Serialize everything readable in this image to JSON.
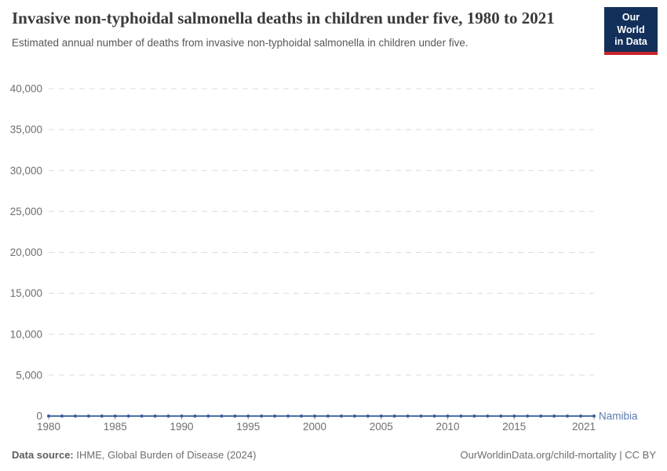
{
  "header": {
    "title": "Invasive non-typhoidal salmonella deaths in children under five, 1980 to 2021",
    "subtitle": "Estimated annual number of deaths from invasive non-typhoidal salmonella in children under five."
  },
  "logo": {
    "line1": "Our World",
    "line2": "in Data",
    "bg_color": "#12305a",
    "accent_color": "#c9262c"
  },
  "chart_data": {
    "type": "line",
    "title": "Invasive non-typhoidal salmonella deaths in children under five, 1980 to 2021",
    "xlabel": "",
    "ylabel": "",
    "xlim": [
      1980,
      2021
    ],
    "ylim": [
      0,
      40000
    ],
    "grid": "horizontal-dashed",
    "legend_position": "end-of-line-label",
    "x": [
      1980,
      1981,
      1982,
      1983,
      1984,
      1985,
      1986,
      1987,
      1988,
      1989,
      1990,
      1991,
      1992,
      1993,
      1994,
      1995,
      1996,
      1997,
      1998,
      1999,
      2000,
      2001,
      2002,
      2003,
      2004,
      2005,
      2006,
      2007,
      2008,
      2009,
      2010,
      2011,
      2012,
      2013,
      2014,
      2015,
      2016,
      2017,
      2018,
      2019,
      2020,
      2021
    ],
    "series": [
      {
        "name": "Namibia",
        "color": "#4e6fa8",
        "marker_color": "#3c5f99",
        "label_color": "#5b7cb0",
        "values": [
          0,
          0,
          0,
          0,
          0,
          0,
          0,
          0,
          0,
          0,
          0,
          0,
          0,
          0,
          0,
          0,
          0,
          0,
          0,
          0,
          0,
          0,
          0,
          0,
          0,
          0,
          0,
          0,
          0,
          0,
          0,
          0,
          0,
          0,
          0,
          0,
          0,
          0,
          0,
          0,
          0,
          0
        ]
      }
    ],
    "yticks": [
      {
        "value": 0,
        "label": "0"
      },
      {
        "value": 5000,
        "label": "5,000"
      },
      {
        "value": 10000,
        "label": "10,000"
      },
      {
        "value": 15000,
        "label": "15,000"
      },
      {
        "value": 20000,
        "label": "20,000"
      },
      {
        "value": 25000,
        "label": "25,000"
      },
      {
        "value": 30000,
        "label": "30,000"
      },
      {
        "value": 35000,
        "label": "35,000"
      },
      {
        "value": 40000,
        "label": "40,000"
      }
    ],
    "xticks": [
      {
        "value": 1980,
        "label": "1980"
      },
      {
        "value": 1985,
        "label": "1985"
      },
      {
        "value": 1990,
        "label": "1990"
      },
      {
        "value": 1995,
        "label": "1995"
      },
      {
        "value": 2000,
        "label": "2000"
      },
      {
        "value": 2005,
        "label": "2005"
      },
      {
        "value": 2010,
        "label": "2010"
      },
      {
        "value": 2015,
        "label": "2015"
      },
      {
        "value": 2021,
        "label": "2021"
      }
    ]
  },
  "footer": {
    "source_label": "Data source:",
    "source_value": "IHME, Global Burden of Disease (2024)",
    "link_text": "OurWorldinData.org/child-mortality | CC BY"
  }
}
